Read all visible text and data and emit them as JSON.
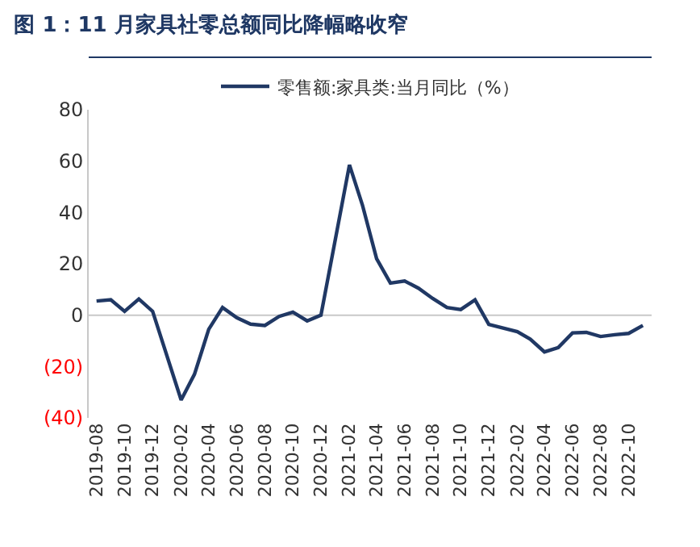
{
  "chart_data": {
    "type": "line",
    "title": "图 1：11 月家具社零总额同比降幅略收窄",
    "x": [
      "2019-08",
      "2019-09",
      "2019-10",
      "2019-11",
      "2019-12",
      "2020-02",
      "2020-03",
      "2020-04",
      "2020-05",
      "2020-06",
      "2020-07",
      "2020-08",
      "2020-09",
      "2020-10",
      "2020-11",
      "2020-12",
      "2021-02",
      "2021-03",
      "2021-04",
      "2021-05",
      "2021-06",
      "2021-07",
      "2021-08",
      "2021-09",
      "2021-10",
      "2021-11",
      "2021-12",
      "2022-02",
      "2022-03",
      "2022-04",
      "2022-05",
      "2022-06",
      "2022-07",
      "2022-08",
      "2022-09",
      "2022-10",
      "2022-11"
    ],
    "series": [
      {
        "name": "零售额:家具类:当月同比（%）",
        "color": "#203864",
        "values": [
          5.5,
          6,
          1.5,
          6.3,
          1.5,
          -33,
          -23,
          -5.5,
          3,
          -1,
          -3.5,
          -4,
          -0.5,
          1.2,
          -2.2,
          0,
          58.5,
          43,
          22,
          12.5,
          13.3,
          10.5,
          6.5,
          3,
          2.2,
          6,
          -3.6,
          -6.4,
          -9.3,
          -14.3,
          -12.6,
          -6.9,
          -6.7,
          -8.3,
          -7.6,
          -7.1,
          -4
        ]
      }
    ],
    "xlim": [
      "2019-07-15",
      "2022-11-20"
    ],
    "xticks": [
      {
        "value": "2019-08",
        "label": "2019-08"
      },
      {
        "value": "2019-10",
        "label": "2019-10"
      },
      {
        "value": "2019-12",
        "label": "2019-12"
      },
      {
        "value": "2020-02",
        "label": "2020-02"
      },
      {
        "value": "2020-04",
        "label": "2020-04"
      },
      {
        "value": "2020-06",
        "label": "2020-06"
      },
      {
        "value": "2020-08",
        "label": "2020-08"
      },
      {
        "value": "2020-10",
        "label": "2020-10"
      },
      {
        "value": "2020-12",
        "label": "2020-12"
      },
      {
        "value": "2021-02",
        "label": "2021-02"
      },
      {
        "value": "2021-04",
        "label": "2021-04"
      },
      {
        "value": "2021-06",
        "label": "2021-06"
      },
      {
        "value": "2021-08",
        "label": "2021-08"
      },
      {
        "value": "2021-10",
        "label": "2021-10"
      },
      {
        "value": "2021-12",
        "label": "2021-12"
      },
      {
        "value": "2022-02",
        "label": "2022-02"
      },
      {
        "value": "2022-04",
        "label": "2022-04"
      },
      {
        "value": "2022-06",
        "label": "2022-06"
      },
      {
        "value": "2022-08",
        "label": "2022-08"
      },
      {
        "value": "2022-10",
        "label": "2022-10"
      }
    ],
    "ylim": [
      -40,
      80
    ],
    "yticks": [
      {
        "value": -40,
        "label": "(40)"
      },
      {
        "value": -20,
        "label": "(20)"
      },
      0,
      20,
      40,
      60,
      80
    ],
    "ref_lines": [
      {
        "axis": "y",
        "value": 0,
        "color": "#c8c8c8"
      }
    ],
    "grid": false,
    "legend": "top",
    "marker": "none",
    "line_style": "solid"
  }
}
